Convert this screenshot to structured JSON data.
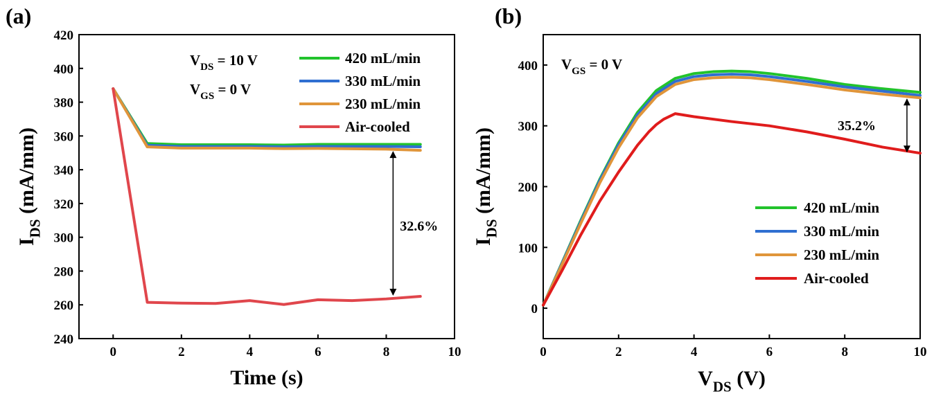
{
  "chart_data": [
    {
      "panel_label": "(a)",
      "type": "line",
      "xlabel": "Time (s)",
      "ylabel": {
        "base": "I",
        "sub": "DS",
        "rest": " (mA/mm)"
      },
      "xlim": [
        -1,
        10
      ],
      "ylim": [
        240,
        420
      ],
      "xticks": [
        0,
        2,
        4,
        6,
        8,
        10
      ],
      "yticks": [
        240,
        260,
        280,
        300,
        320,
        340,
        360,
        380,
        400,
        420
      ],
      "conditions": [
        {
          "base": "V",
          "sub": "DS",
          "rest": " = 10 V"
        },
        {
          "base": "V",
          "sub": "GS",
          "rest": " = 0 V"
        }
      ],
      "legend_position": "top-right",
      "series": [
        {
          "name": "420 mL/min",
          "color": "#22c32c",
          "x": [
            0,
            1,
            2,
            3,
            4,
            5,
            6,
            7,
            8,
            9
          ],
          "y": [
            388,
            355.5,
            354.8,
            354.8,
            354.8,
            354.6,
            355,
            355,
            355,
            355
          ]
        },
        {
          "name": "330 mL/min",
          "color": "#2f6fd1",
          "x": [
            0,
            1,
            2,
            3,
            4,
            5,
            6,
            7,
            8,
            9
          ],
          "y": [
            388,
            354.5,
            353.8,
            353.8,
            353.8,
            353.6,
            353.8,
            353.8,
            353.8,
            353.6
          ]
        },
        {
          "name": "230 mL/min",
          "color": "#e0953a",
          "x": [
            0,
            1,
            2,
            3,
            4,
            5,
            6,
            7,
            8,
            9
          ],
          "y": [
            388,
            353.5,
            352.8,
            352.8,
            352.8,
            352.5,
            352.6,
            352.4,
            352.2,
            351.5
          ]
        },
        {
          "name": "Air-cooled",
          "color": "#e0464c",
          "x": [
            0,
            1,
            2,
            3,
            4,
            5,
            6,
            7,
            8,
            9
          ],
          "y": [
            388,
            261.5,
            261,
            260.8,
            262.5,
            260.2,
            263,
            262.5,
            263.5,
            265
          ]
        }
      ],
      "annotation": {
        "text": "32.6%",
        "x": 8.2,
        "y_top": 351.5,
        "y_bottom": 265
      }
    },
    {
      "panel_label": "(b)",
      "type": "line",
      "xlabel": {
        "base": "V",
        "sub": "DS",
        "rest": " (V)"
      },
      "ylabel": {
        "base": "I",
        "sub": "DS",
        "rest": " (mA/mm)"
      },
      "xlim": [
        0,
        10
      ],
      "ylim": [
        -50,
        450
      ],
      "xticks": [
        0,
        2,
        4,
        6,
        8,
        10
      ],
      "yticks": [
        0,
        100,
        200,
        300,
        400
      ],
      "conditions": [
        {
          "base": "V",
          "sub": "GS",
          "rest": " = 0 V"
        }
      ],
      "legend_position": "center-right",
      "series": [
        {
          "name": "420 mL/min",
          "color": "#22c32c",
          "x": [
            0,
            0.5,
            1,
            1.5,
            2,
            2.5,
            3,
            3.5,
            4,
            4.5,
            5,
            5.5,
            6,
            7,
            8,
            9,
            10
          ],
          "y": [
            5,
            75,
            145,
            212,
            272,
            322,
            358,
            378,
            386,
            389,
            390,
            389,
            386,
            378,
            368,
            361,
            355
          ]
        },
        {
          "name": "330 mL/min",
          "color": "#2f6fd1",
          "x": [
            0,
            0.5,
            1,
            1.5,
            2,
            2.5,
            3,
            3.5,
            4,
            4.5,
            5,
            5.5,
            6,
            7,
            8,
            9,
            10
          ],
          "y": [
            5,
            74,
            143,
            210,
            269,
            318,
            353,
            373,
            381,
            384,
            385,
            384,
            381,
            373,
            364,
            357,
            350
          ]
        },
        {
          "name": "230 mL/min",
          "color": "#e0953a",
          "x": [
            0,
            0.5,
            1,
            1.5,
            2,
            2.5,
            3,
            3.5,
            4,
            4.5,
            5,
            5.5,
            6,
            7,
            8,
            9,
            10
          ],
          "y": [
            5,
            72,
            140,
            206,
            264,
            313,
            348,
            368,
            376,
            379,
            380,
            379,
            376,
            368,
            359,
            352,
            346
          ]
        },
        {
          "name": "Air-cooled",
          "color": "#e01c1c",
          "x": [
            0,
            0.5,
            1,
            1.5,
            2,
            2.5,
            2.8,
            3,
            3.2,
            3.5,
            4,
            5,
            6,
            7,
            8,
            9,
            10
          ],
          "y": [
            5,
            62,
            121,
            176,
            224,
            268,
            290,
            302,
            311,
            320,
            315,
            307,
            300,
            290,
            278,
            265,
            255
          ]
        }
      ],
      "annotation": {
        "text": "35.2%",
        "x": 9.65,
        "y_top": 346,
        "y_bottom": 255
      }
    }
  ]
}
